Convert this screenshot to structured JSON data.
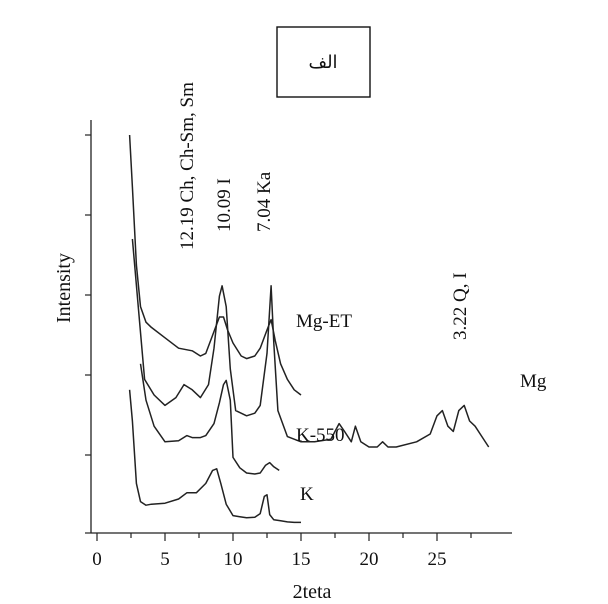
{
  "chart_data": {
    "type": "line",
    "title": "الف",
    "xlabel": "2teta",
    "ylabel": "Intensity",
    "xlim": [
      0,
      29
    ],
    "x_ticks": [
      0,
      5,
      10,
      15,
      20,
      25
    ],
    "grid": false,
    "peak_labels": [
      {
        "text": "12.19 Ch, Ch-Sm, Sm",
        "x": 6.2
      },
      {
        "text": "10.09 I",
        "x": 8.8
      },
      {
        "text": "7.04 Ka",
        "x": 12.7
      },
      {
        "text": "3.22 Q, I",
        "x": 26.5
      }
    ],
    "series": [
      {
        "name": "K",
        "x": [
          2.4,
          2.6,
          2.9,
          3.2,
          3.6,
          4.0,
          5.0,
          6.0,
          6.6,
          7.3,
          8.0,
          8.5,
          8.8,
          9.1,
          9.5,
          10.0,
          10.5,
          11.0,
          11.6,
          12.0,
          12.3,
          12.5,
          12.7,
          13.0,
          13.5,
          14.0,
          14.5,
          15.0
        ],
        "y": [
          2.6,
          2.0,
          0.8,
          0.45,
          0.38,
          0.4,
          0.42,
          0.5,
          0.62,
          0.62,
          0.8,
          1.05,
          1.08,
          0.8,
          0.4,
          0.18,
          0.16,
          0.14,
          0.15,
          0.22,
          0.55,
          0.58,
          0.2,
          0.1,
          0.08,
          0.06,
          0.05,
          0.05
        ]
      },
      {
        "name": "K-550",
        "x": [
          3.2,
          3.6,
          4.2,
          5.0,
          6.0,
          6.6,
          7.0,
          7.6,
          8.0,
          8.6,
          9.0,
          9.3,
          9.5,
          9.8,
          10.0,
          10.5,
          11.0,
          11.6,
          12.0,
          12.4,
          12.7,
          13.0,
          13.4
        ],
        "y": [
          3.1,
          2.4,
          1.9,
          1.6,
          1.62,
          1.72,
          1.68,
          1.68,
          1.72,
          1.95,
          2.35,
          2.7,
          2.78,
          2.4,
          1.3,
          1.1,
          1.0,
          0.98,
          1.0,
          1.15,
          1.2,
          1.12,
          1.05
        ]
      },
      {
        "name": "Mg",
        "x": [
          2.6,
          3.0,
          3.5,
          4.2,
          5.0,
          5.8,
          6.4,
          7.0,
          7.6,
          8.2,
          8.6,
          9.0,
          9.2,
          9.5,
          9.8,
          10.2,
          11.0,
          11.6,
          12.0,
          12.5,
          12.8,
          13.0,
          13.3,
          14.0,
          15.0,
          16.0,
          17.2,
          17.8,
          18.2,
          18.7,
          19.0,
          19.4,
          20.0,
          20.6,
          21.0,
          21.4,
          22.0,
          23.5,
          24.5,
          25.0,
          25.4,
          25.8,
          26.2,
          26.6,
          27.0,
          27.4,
          27.8,
          28.3,
          28.8
        ],
        "y": [
          5.5,
          4.3,
          2.8,
          2.5,
          2.3,
          2.45,
          2.7,
          2.6,
          2.45,
          2.7,
          3.4,
          4.4,
          4.6,
          4.2,
          3.0,
          2.2,
          2.1,
          2.15,
          2.3,
          3.3,
          4.6,
          3.5,
          2.2,
          1.7,
          1.6,
          1.6,
          1.65,
          1.95,
          1.8,
          1.6,
          1.9,
          1.6,
          1.5,
          1.5,
          1.6,
          1.5,
          1.5,
          1.6,
          1.75,
          2.1,
          2.2,
          1.9,
          1.8,
          2.2,
          2.3,
          2.0,
          1.9,
          1.7,
          1.5
        ]
      },
      {
        "name": "Mg-ET",
        "x": [
          2.4,
          2.6,
          2.9,
          3.2,
          3.6,
          4.0,
          5.0,
          6.0,
          7.0,
          7.6,
          8.0,
          8.5,
          9.0,
          9.3,
          9.6,
          10.0,
          10.6,
          11.0,
          11.6,
          12.0,
          12.5,
          12.8,
          13.1,
          13.5,
          14.0,
          14.5,
          15.0
        ],
        "y": [
          7.5,
          6.5,
          5.0,
          4.2,
          3.9,
          3.8,
          3.6,
          3.4,
          3.35,
          3.25,
          3.3,
          3.65,
          4.0,
          4.0,
          3.75,
          3.5,
          3.25,
          3.2,
          3.25,
          3.4,
          3.75,
          3.95,
          3.55,
          3.1,
          2.8,
          2.6,
          2.5
        ]
      }
    ]
  }
}
